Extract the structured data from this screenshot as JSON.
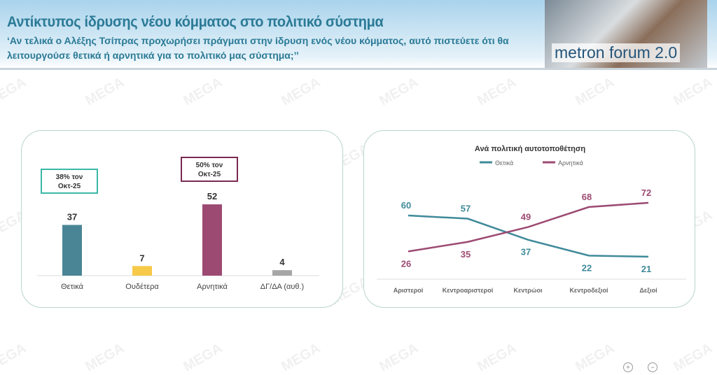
{
  "header": {
    "title": "Αντίκτυπος ίδρυσης νέου κόμματος στο πολιτικό σύστημα",
    "subtitle": "‘Αν τελικά ο Αλέξης Τσίπρας προχωρήσει πράγματι στην ίδρυση ενός νέου κόμματος, αυτό πιστεύετε ότι θα λειτουργούσε θετικά ή αρνητικά για το πολιτικό μας σύστημα;’’",
    "logo_text": "metron forum 2.0"
  },
  "watermark": "MEGA",
  "chart_data": [
    {
      "type": "bar",
      "categories": [
        "Θετικά",
        "Ουδέτερα",
        "Αρνητικά",
        "ΔΓ/ΔΑ (αυθ.)"
      ],
      "values": [
        37,
        7,
        52,
        4
      ],
      "colors": [
        "#4a8596",
        "#f7c948",
        "#9c4a72",
        "#a6a6a6"
      ],
      "annotations": [
        {
          "category": "Θετικά",
          "text_line1": "38% τον",
          "text_line2": "Οκτ-25",
          "color": "#3bb8a8"
        },
        {
          "category": "Αρνητικά",
          "text_line1": "50% τον",
          "text_line2": "Οκτ-25",
          "color": "#7a2a52"
        }
      ],
      "ylim": [
        0,
        60
      ]
    },
    {
      "type": "line",
      "title": "Ανά πολιτική αυτοτοποθέτηση",
      "categories": [
        "Αριστεροί",
        "Κεντροαριστεροί",
        "Κεντρώοι",
        "Κεντροδεξιοί",
        "Δεξιοί"
      ],
      "series": [
        {
          "name": "Θετικά",
          "values": [
            60,
            57,
            37,
            22,
            21
          ],
          "color": "#3f8a9a"
        },
        {
          "name": "Αρνητικά",
          "values": [
            26,
            35,
            49,
            68,
            72
          ],
          "color": "#9c4a72"
        }
      ],
      "legend": "top",
      "ylim": [
        0,
        80
      ]
    }
  ]
}
